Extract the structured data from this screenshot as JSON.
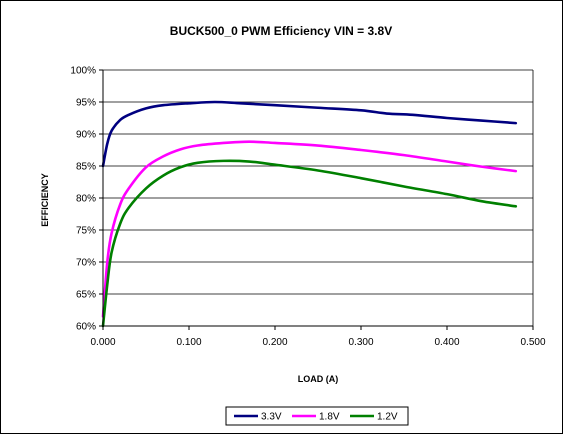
{
  "chart_data": {
    "type": "line",
    "title": "BUCK500_0 PWM Efficiency VIN = 3.8V",
    "xlabel": "LOAD (A)",
    "ylabel": "EFFICIENCY",
    "xlim": [
      0,
      0.5
    ],
    "ylim": [
      0.6,
      1.0
    ],
    "x_ticks": [
      "0.000",
      "0.100",
      "0.200",
      "0.300",
      "0.400",
      "0.500"
    ],
    "y_ticks": [
      "60%",
      "65%",
      "70%",
      "75%",
      "80%",
      "85%",
      "90%",
      "95%",
      "100%"
    ],
    "grid": "horizontal",
    "legend_position": "bottom",
    "series": [
      {
        "name": "3.3V",
        "color": "#000080",
        "x": [
          0.0,
          0.005,
          0.01,
          0.02,
          0.03,
          0.05,
          0.07,
          0.1,
          0.13,
          0.16,
          0.2,
          0.25,
          0.3,
          0.33,
          0.36,
          0.4,
          0.44,
          0.48
        ],
        "y": [
          0.85,
          0.885,
          0.905,
          0.922,
          0.93,
          0.94,
          0.945,
          0.948,
          0.95,
          0.948,
          0.945,
          0.941,
          0.937,
          0.932,
          0.93,
          0.925,
          0.921,
          0.917
        ]
      },
      {
        "name": "1.8V",
        "color": "#FF00FF",
        "x": [
          0.0,
          0.005,
          0.01,
          0.02,
          0.03,
          0.05,
          0.07,
          0.09,
          0.11,
          0.14,
          0.17,
          0.2,
          0.25,
          0.3,
          0.35,
          0.4,
          0.44,
          0.48
        ],
        "y": [
          0.615,
          0.7,
          0.745,
          0.79,
          0.815,
          0.848,
          0.865,
          0.876,
          0.882,
          0.886,
          0.888,
          0.886,
          0.882,
          0.875,
          0.867,
          0.857,
          0.849,
          0.842
        ]
      },
      {
        "name": "1.2V",
        "color": "#008000",
        "x": [
          0.0,
          0.005,
          0.01,
          0.02,
          0.03,
          0.05,
          0.07,
          0.09,
          0.11,
          0.14,
          0.17,
          0.2,
          0.25,
          0.3,
          0.35,
          0.4,
          0.44,
          0.48
        ],
        "y": [
          0.6,
          0.665,
          0.715,
          0.76,
          0.785,
          0.815,
          0.835,
          0.848,
          0.855,
          0.858,
          0.857,
          0.852,
          0.843,
          0.831,
          0.818,
          0.806,
          0.795,
          0.787
        ]
      }
    ]
  }
}
